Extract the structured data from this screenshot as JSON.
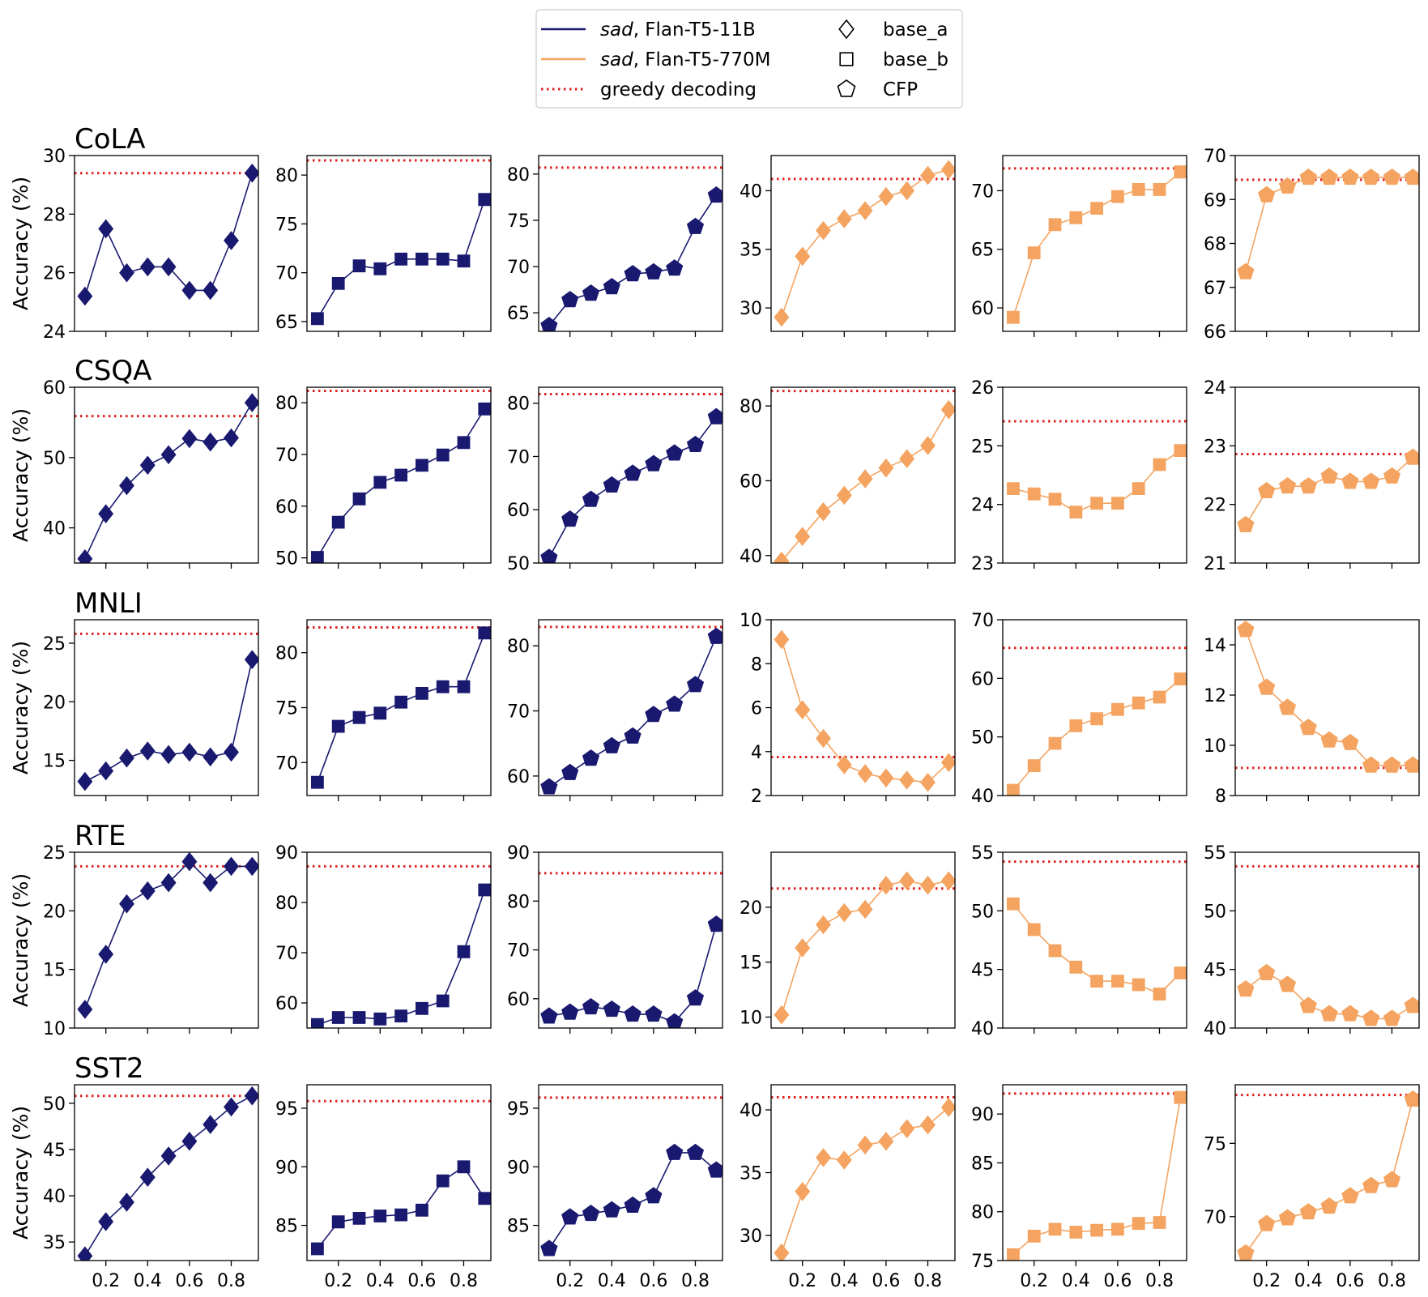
{
  "legend": {
    "items": [
      {
        "kind": "line",
        "color": "#191970",
        "italic": "sad",
        "label": ", Flan-T5-11B"
      },
      {
        "kind": "line",
        "color": "#f4a460",
        "italic": "sad",
        "label": ", Flan-T5-770M"
      },
      {
        "kind": "dotted",
        "color": "#e02020",
        "italic": "",
        "label": "greedy decoding"
      },
      {
        "kind": "marker",
        "marker": "diamond",
        "italic": "",
        "label": "base_a"
      },
      {
        "kind": "marker",
        "marker": "square",
        "italic": "",
        "label": "base_b"
      },
      {
        "kind": "marker",
        "marker": "pentagon",
        "italic": "",
        "label": "CFP"
      }
    ]
  },
  "colors": {
    "flan_11b": "#191970",
    "flan_770m": "#f4a460",
    "greedy": "#e02020"
  },
  "ylabel": "Accuracy (%)",
  "chart_data": {
    "type": "line",
    "layout": "grid 5 rows x 6 columns",
    "x": [
      0.1,
      0.2,
      0.3,
      0.4,
      0.5,
      0.6,
      0.7,
      0.8,
      0.9
    ],
    "xticks": [
      0.2,
      0.4,
      0.6,
      0.8
    ],
    "xtick_labels": [
      "0.2",
      "0.4",
      "0.6",
      "0.8"
    ],
    "xlim": [
      0.05,
      0.93
    ],
    "rows": [
      {
        "title": "CoLA",
        "panels": [
          {
            "model": "flan_11b",
            "marker": "diamond",
            "ylim": [
              24,
              30
            ],
            "yticks": [
              24,
              26,
              28,
              30
            ],
            "greedy": 29.4,
            "values": [
              25.2,
              27.5,
              26.0,
              26.2,
              26.2,
              25.4,
              25.4,
              27.1,
              29.4
            ]
          },
          {
            "model": "flan_11b",
            "marker": "square",
            "ylim": [
              64,
              82
            ],
            "yticks": [
              65,
              70,
              75,
              80
            ],
            "greedy": 81.5,
            "values": [
              65.3,
              68.9,
              70.7,
              70.4,
              71.4,
              71.4,
              71.4,
              71.2,
              77.5
            ]
          },
          {
            "model": "flan_11b",
            "marker": "pentagon",
            "ylim": [
              63,
              82
            ],
            "yticks": [
              65,
              70,
              75,
              80
            ],
            "greedy": 80.7,
            "values": [
              63.6,
              66.4,
              67.1,
              67.8,
              69.2,
              69.4,
              69.8,
              74.3,
              77.7
            ]
          },
          {
            "model": "flan_770m",
            "marker": "diamond",
            "ylim": [
              28,
              43
            ],
            "yticks": [
              30,
              35,
              40
            ],
            "greedy": 41.0,
            "values": [
              29.2,
              34.4,
              36.6,
              37.6,
              38.3,
              39.5,
              40.0,
              41.3,
              41.8
            ]
          },
          {
            "model": "flan_770m",
            "marker": "square",
            "ylim": [
              58,
              73
            ],
            "yticks": [
              60,
              65,
              70
            ],
            "greedy": 71.9,
            "values": [
              59.2,
              64.7,
              67.1,
              67.7,
              68.5,
              69.5,
              70.1,
              70.1,
              71.6
            ]
          },
          {
            "model": "flan_770m",
            "marker": "pentagon",
            "ylim": [
              66,
              70
            ],
            "yticks": [
              66,
              67,
              68,
              69,
              70
            ],
            "greedy": 69.45,
            "values": [
              67.35,
              69.1,
              69.3,
              69.5,
              69.5,
              69.5,
              69.5,
              69.5,
              69.5
            ]
          }
        ]
      },
      {
        "title": "CSQA",
        "panels": [
          {
            "model": "flan_11b",
            "marker": "diamond",
            "ylim": [
              35,
              60
            ],
            "yticks": [
              40,
              50,
              60
            ],
            "greedy": 55.9,
            "values": [
              35.6,
              42.0,
              46.0,
              48.9,
              50.4,
              52.7,
              52.2,
              52.8,
              57.8
            ]
          },
          {
            "model": "flan_11b",
            "marker": "square",
            "ylim": [
              49,
              83
            ],
            "yticks": [
              50,
              60,
              70,
              80
            ],
            "greedy": 82.3,
            "values": [
              50.1,
              56.9,
              61.4,
              64.6,
              66.0,
              67.9,
              69.9,
              72.3,
              78.8
            ]
          },
          {
            "model": "flan_11b",
            "marker": "pentagon",
            "ylim": [
              50,
              83
            ],
            "yticks": [
              50,
              60,
              70,
              80
            ],
            "greedy": 81.7,
            "values": [
              51.0,
              58.2,
              61.9,
              64.6,
              66.8,
              68.6,
              70.6,
              72.2,
              77.4
            ]
          },
          {
            "model": "flan_770m",
            "marker": "diamond",
            "ylim": [
              38,
              85
            ],
            "yticks": [
              40,
              60,
              80
            ],
            "greedy": 84.0,
            "values": [
              38.5,
              45.1,
              51.7,
              56.1,
              60.5,
              63.4,
              65.9,
              69.4,
              79.0
            ]
          },
          {
            "model": "flan_770m",
            "marker": "square",
            "ylim": [
              23,
              26
            ],
            "yticks": [
              23,
              24,
              25,
              26
            ],
            "greedy": 25.42,
            "values": [
              24.27,
              24.18,
              24.09,
              23.87,
              24.02,
              24.02,
              24.27,
              24.68,
              24.92
            ]
          },
          {
            "model": "flan_770m",
            "marker": "pentagon",
            "ylim": [
              21,
              24
            ],
            "yticks": [
              21,
              22,
              23,
              24
            ],
            "greedy": 22.86,
            "values": [
              21.65,
              22.23,
              22.31,
              22.31,
              22.48,
              22.39,
              22.39,
              22.48,
              22.8
            ]
          }
        ]
      },
      {
        "title": "MNLI",
        "panels": [
          {
            "model": "flan_11b",
            "marker": "diamond",
            "ylim": [
              12,
              27
            ],
            "yticks": [
              15,
              20,
              25
            ],
            "greedy": 25.8,
            "values": [
              13.2,
              14.1,
              15.2,
              15.8,
              15.5,
              15.7,
              15.3,
              15.7,
              23.6
            ]
          },
          {
            "model": "flan_11b",
            "marker": "square",
            "ylim": [
              67,
              83
            ],
            "yticks": [
              70,
              75,
              80
            ],
            "greedy": 82.3,
            "values": [
              68.2,
              73.3,
              74.1,
              74.5,
              75.5,
              76.3,
              76.9,
              76.9,
              81.8
            ]
          },
          {
            "model": "flan_11b",
            "marker": "pentagon",
            "ylim": [
              57,
              84
            ],
            "yticks": [
              60,
              70,
              80
            ],
            "greedy": 82.9,
            "values": [
              58.3,
              60.5,
              62.7,
              64.6,
              66.1,
              69.4,
              71.0,
              74.0,
              81.4
            ]
          },
          {
            "model": "flan_770m",
            "marker": "diamond",
            "ylim": [
              2,
              10
            ],
            "yticks": [
              2,
              4,
              6,
              8,
              10
            ],
            "greedy": 3.75,
            "values": [
              9.1,
              5.9,
              4.6,
              3.4,
              3.0,
              2.8,
              2.7,
              2.6,
              3.5
            ]
          },
          {
            "model": "flan_770m",
            "marker": "square",
            "ylim": [
              40,
              70
            ],
            "yticks": [
              40,
              50,
              60,
              70
            ],
            "greedy": 65.2,
            "values": [
              40.9,
              45.1,
              48.9,
              51.9,
              53.1,
              54.7,
              55.8,
              56.8,
              59.9
            ]
          },
          {
            "model": "flan_770m",
            "marker": "pentagon",
            "ylim": [
              8,
              15
            ],
            "yticks": [
              8,
              10,
              12,
              14
            ],
            "greedy": 9.1,
            "values": [
              14.6,
              12.3,
              11.5,
              10.7,
              10.2,
              10.1,
              9.2,
              9.2,
              9.2
            ]
          }
        ]
      },
      {
        "title": "RTE",
        "panels": [
          {
            "model": "flan_11b",
            "marker": "diamond",
            "ylim": [
              10,
              25
            ],
            "yticks": [
              10,
              15,
              20,
              25
            ],
            "greedy": 23.8,
            "values": [
              11.6,
              16.3,
              20.6,
              21.7,
              22.4,
              24.2,
              22.4,
              23.8,
              23.8
            ]
          },
          {
            "model": "flan_11b",
            "marker": "square",
            "ylim": [
              55,
              90
            ],
            "yticks": [
              60,
              70,
              80,
              90
            ],
            "greedy": 87.2,
            "values": [
              55.7,
              57.1,
              57.1,
              56.8,
              57.4,
              58.9,
              60.4,
              70.2,
              82.5
            ]
          },
          {
            "model": "flan_11b",
            "marker": "pentagon",
            "ylim": [
              54,
              90
            ],
            "yticks": [
              60,
              70,
              80,
              90
            ],
            "greedy": 85.7,
            "values": [
              56.4,
              57.2,
              58.3,
              57.8,
              56.8,
              56.8,
              55.2,
              60.1,
              75.2
            ]
          },
          {
            "model": "flan_770m",
            "marker": "diamond",
            "ylim": [
              9,
              25
            ],
            "yticks": [
              10,
              15,
              20
            ],
            "greedy": 21.7,
            "values": [
              10.2,
              16.3,
              18.4,
              19.5,
              19.8,
              22.0,
              22.4,
              22.0,
              22.4
            ]
          },
          {
            "model": "flan_770m",
            "marker": "square",
            "ylim": [
              40,
              55
            ],
            "yticks": [
              40,
              45,
              50,
              55
            ],
            "greedy": 54.2,
            "values": [
              50.6,
              48.4,
              46.6,
              45.2,
              44.0,
              44.0,
              43.7,
              42.9,
              44.7
            ]
          },
          {
            "model": "flan_770m",
            "marker": "pentagon",
            "ylim": [
              40,
              55
            ],
            "yticks": [
              40,
              45,
              50,
              55
            ],
            "greedy": 53.8,
            "values": [
              43.3,
              44.7,
              43.7,
              41.9,
              41.2,
              41.2,
              40.8,
              40.8,
              41.9
            ]
          }
        ]
      },
      {
        "title": "SST2",
        "panels": [
          {
            "model": "flan_11b",
            "marker": "diamond",
            "ylim": [
              33,
              52
            ],
            "yticks": [
              35,
              40,
              45,
              50
            ],
            "greedy": 50.8,
            "values": [
              33.5,
              37.2,
              39.3,
              42.0,
              44.3,
              45.9,
              47.7,
              49.6,
              50.8
            ]
          },
          {
            "model": "flan_11b",
            "marker": "square",
            "ylim": [
              82,
              97
            ],
            "yticks": [
              85,
              90,
              95
            ],
            "greedy": 95.6,
            "values": [
              83.0,
              85.3,
              85.6,
              85.8,
              85.9,
              86.3,
              88.8,
              90.0,
              87.3
            ]
          },
          {
            "model": "flan_11b",
            "marker": "pentagon",
            "ylim": [
              82,
              97
            ],
            "yticks": [
              85,
              90,
              95
            ],
            "greedy": 95.9,
            "values": [
              83.0,
              85.7,
              86.0,
              86.3,
              86.7,
              87.5,
              91.2,
              91.2,
              89.7
            ]
          },
          {
            "model": "flan_770m",
            "marker": "diamond",
            "ylim": [
              28,
              42
            ],
            "yticks": [
              30,
              35,
              40
            ],
            "greedy": 41.0,
            "values": [
              28.6,
              33.5,
              36.2,
              36.0,
              37.2,
              37.5,
              38.5,
              38.8,
              40.2
            ]
          },
          {
            "model": "flan_770m",
            "marker": "square",
            "ylim": [
              75,
              93
            ],
            "yticks": [
              75,
              80,
              85,
              90
            ],
            "greedy": 92.1,
            "values": [
              75.6,
              77.5,
              78.2,
              77.9,
              78.1,
              78.2,
              78.8,
              78.9,
              91.7
            ]
          },
          {
            "model": "flan_770m",
            "marker": "pentagon",
            "ylim": [
              67,
              79
            ],
            "yticks": [
              70,
              75
            ],
            "greedy": 78.3,
            "values": [
              67.5,
              69.5,
              69.9,
              70.3,
              70.7,
              71.4,
              72.1,
              72.5,
              78.0
            ]
          }
        ]
      }
    ]
  }
}
